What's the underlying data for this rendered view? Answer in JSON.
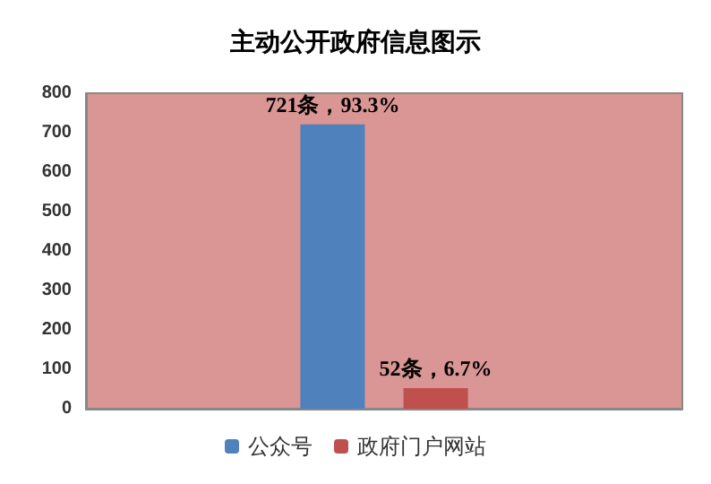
{
  "chart_data": {
    "type": "bar",
    "title": "主动公开政府信息图示",
    "categories": [
      null
    ],
    "series": [
      {
        "name": "公众号",
        "color": "#4f81bd",
        "values": [
          721
        ],
        "value_labels": [
          "721条，93.3%"
        ]
      },
      {
        "name": "政府门户网站",
        "color": "#c0504d",
        "values": [
          52
        ],
        "value_labels": [
          "52条，6.7%"
        ]
      }
    ],
    "ylim": [
      0,
      800
    ],
    "yticks": [
      0,
      100,
      200,
      300,
      400,
      500,
      600,
      700,
      800
    ],
    "grid": false,
    "legend": "bottom"
  }
}
